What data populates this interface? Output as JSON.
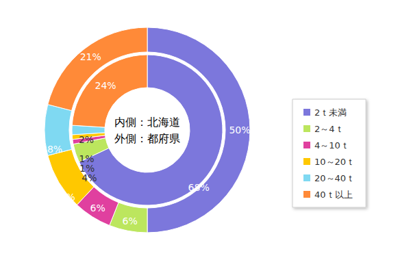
{
  "chart_data": {
    "type": "pie",
    "categories": [
      "2ｔ未満",
      "2～4ｔ",
      "4～10ｔ",
      "10～20ｔ",
      "20～40ｔ",
      "40ｔ以上"
    ],
    "colors": [
      "#7c77dc",
      "#bce65e",
      "#e0409f",
      "#ffc800",
      "#7fd9f2",
      "#ff8a38"
    ],
    "series": [
      {
        "name": "内側：北海道",
        "values": [
          68,
          4,
          1,
          1,
          2,
          24
        ],
        "value_labels": [
          "68%",
          "4%",
          "1%",
          "1%",
          "2%",
          "24%"
        ]
      },
      {
        "name": "外側：都府県",
        "values": [
          50,
          6,
          6,
          9,
          8,
          21
        ],
        "value_labels": [
          "50%",
          "6%",
          "6%",
          "9%",
          "8%",
          "21%"
        ]
      }
    ],
    "data_labels": true,
    "legend": "right"
  }
}
